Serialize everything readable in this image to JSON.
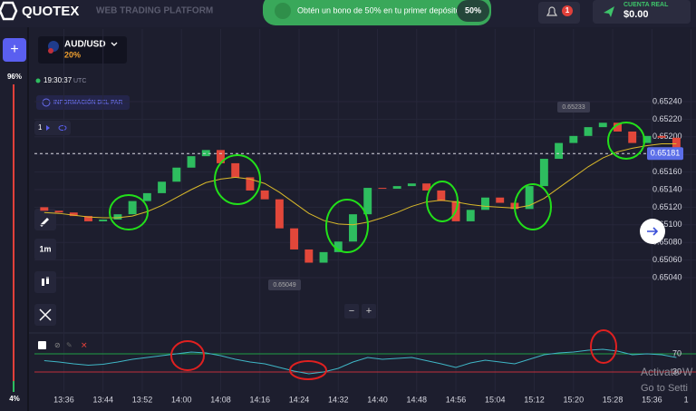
{
  "header": {
    "logo": "QUOTEX",
    "subtitle": "WEB TRADING PLATFORM",
    "promo": "Obtén un bono de 50% en tu primer depósito",
    "promo_badge": "50%",
    "notifications": "1",
    "account_label": "CUENTA REAL",
    "balance": "$0.00"
  },
  "asset": {
    "pair": "AUD/USD",
    "payout": "20%",
    "time": "19:30:37",
    "timezone": "UTC",
    "info": "INFORMACIÓN DEL PAR",
    "indicator_count": "1"
  },
  "sidebar": {
    "up": "96%",
    "down": "4%",
    "timeframe": "1m"
  },
  "price_chart": {
    "type": "candlestick",
    "x": [
      812,
      815,
      818,
      821,
      824,
      827,
      830,
      833,
      836,
      839,
      842,
      845,
      848,
      851,
      854,
      857,
      860,
      863,
      866,
      869,
      872,
      875,
      878,
      881,
      884,
      887,
      890,
      893,
      896,
      899,
      902,
      905,
      908,
      911,
      914,
      917,
      920,
      923,
      926,
      929,
      932,
      935,
      938,
      941
    ],
    "open": [
      0.6512,
      0.65116,
      0.65114,
      0.6511,
      0.65104,
      0.65106,
      0.65112,
      0.65127,
      0.65136,
      0.65149,
      0.65165,
      0.65178,
      0.65185,
      0.6517,
      0.65154,
      0.65139,
      0.65129,
      0.65096,
      0.65072,
      0.65057,
      0.65069,
      0.65081,
      0.65112,
      0.65142,
      0.65141,
      0.65144,
      0.65147,
      0.65139,
      0.65127,
      0.65104,
      0.65117,
      0.65131,
      0.65125,
      0.65118,
      0.65144,
      0.65175,
      0.65193,
      0.65201,
      0.65211,
      0.65216,
      0.65206,
      0.65193,
      0.65201,
      0.65199
    ],
    "close": [
      0.65116,
      0.65114,
      0.6511,
      0.65104,
      0.65106,
      0.65112,
      0.65127,
      0.65136,
      0.65149,
      0.65165,
      0.65178,
      0.65185,
      0.6517,
      0.65154,
      0.65139,
      0.65129,
      0.65096,
      0.65072,
      0.65057,
      0.65069,
      0.65081,
      0.65112,
      0.65142,
      0.65141,
      0.65144,
      0.65147,
      0.65139,
      0.65127,
      0.65104,
      0.65117,
      0.65131,
      0.65125,
      0.65118,
      0.65144,
      0.65175,
      0.65193,
      0.65201,
      0.65211,
      0.65216,
      0.65206,
      0.65193,
      0.65201,
      0.65199,
      0.65188
    ],
    "ma": [
      0.65114,
      0.65113,
      0.65111,
      0.65109,
      0.65108,
      0.65108,
      0.6511,
      0.65115,
      0.65122,
      0.65131,
      0.6514,
      0.65148,
      0.65152,
      0.65154,
      0.65152,
      0.65147,
      0.65137,
      0.65125,
      0.65113,
      0.65105,
      0.65101,
      0.651,
      0.65103,
      0.65108,
      0.65114,
      0.65121,
      0.65126,
      0.65128,
      0.65126,
      0.65123,
      0.65121,
      0.6512,
      0.65119,
      0.65122,
      0.6513,
      0.65142,
      0.65154,
      0.65166,
      0.65176,
      0.65183,
      0.65187,
      0.6519,
      0.65192,
      0.65192
    ],
    "current_price": 0.65181,
    "current_price_label": "0.65181",
    "high_label": "0.65233",
    "low_label": "0.65049",
    "xlim": [
      810,
      945
    ],
    "ylim": [
      0.65,
      0.6526
    ],
    "xticks": [
      {
        "value": 816,
        "label": "13:36"
      },
      {
        "value": 824,
        "label": "13:44"
      },
      {
        "value": 832,
        "label": "13:52"
      },
      {
        "value": 840,
        "label": "14:00"
      },
      {
        "value": 848,
        "label": "14:08"
      },
      {
        "value": 856,
        "label": "14:16"
      },
      {
        "value": 864,
        "label": "14:24"
      },
      {
        "value": 872,
        "label": "14:32"
      },
      {
        "value": 880,
        "label": "14:40"
      },
      {
        "value": 888,
        "label": "14:48"
      },
      {
        "value": 896,
        "label": "14:56"
      },
      {
        "value": 904,
        "label": "15:04"
      },
      {
        "value": 912,
        "label": "15:12"
      },
      {
        "value": 920,
        "label": "15:20"
      },
      {
        "value": 928,
        "label": "15:28"
      },
      {
        "value": 936,
        "label": "15:36"
      },
      {
        "value": 944,
        "label": "1"
      }
    ],
    "yticks": [
      {
        "value": 0.6524,
        "label": "0.65240"
      },
      {
        "value": 0.6522,
        "label": "0.65220"
      },
      {
        "value": 0.652,
        "label": "0.65200"
      },
      {
        "value": 0.6518,
        "label": "0.65180"
      },
      {
        "value": 0.6516,
        "label": "0.65160"
      },
      {
        "value": 0.6514,
        "label": "0.65140"
      },
      {
        "value": 0.6512,
        "label": "0.65120"
      },
      {
        "value": 0.651,
        "label": "0.65100"
      },
      {
        "value": 0.6508,
        "label": "0.65080"
      },
      {
        "value": 0.6506,
        "label": "0.65060"
      },
      {
        "value": 0.6504,
        "label": "0.65040"
      }
    ],
    "up_color": "#2ebd5f",
    "down_color": "#e2473a",
    "ma_color": "#d9b92a",
    "grid": true
  },
  "indicator": {
    "type": "line",
    "x": [
      812,
      815,
      818,
      821,
      824,
      827,
      830,
      833,
      836,
      839,
      842,
      845,
      848,
      851,
      854,
      857,
      860,
      863,
      866,
      869,
      872,
      875,
      878,
      881,
      884,
      887,
      890,
      893,
      896,
      899,
      902,
      905,
      908,
      911,
      914,
      917,
      920,
      923,
      926,
      929,
      932,
      935,
      938,
      941
    ],
    "values": [
      55,
      52,
      48,
      45,
      47,
      52,
      58,
      62,
      66,
      70,
      74,
      72,
      66,
      58,
      52,
      48,
      40,
      32,
      26,
      30,
      38,
      52,
      62,
      58,
      60,
      62,
      55,
      48,
      40,
      50,
      56,
      52,
      48,
      58,
      68,
      72,
      74,
      78,
      80,
      76,
      68,
      70,
      68,
      62
    ],
    "ylim": [
      -14,
      106
    ],
    "yticks": [
      30,
      70
    ],
    "tick_colors": [
      "#c0303a",
      "#1f9e45"
    ],
    "color": "#3fb6c6"
  },
  "watermark": {
    "line1": "Activate W",
    "line2": "Go to Setti"
  }
}
